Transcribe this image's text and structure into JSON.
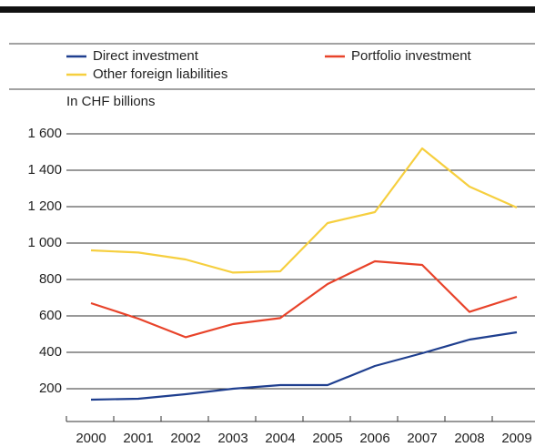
{
  "chart_data": {
    "type": "line",
    "unit_label": "In CHF billions",
    "categories": [
      "2000",
      "2001",
      "2002",
      "2003",
      "2004",
      "2005",
      "2006",
      "2007",
      "2008",
      "2009"
    ],
    "series": [
      {
        "name": "Direct investment",
        "color": "#1f3f8f",
        "values": [
          140,
          145,
          170,
          200,
          220,
          220,
          325,
          395,
          470,
          510
        ]
      },
      {
        "name": "Portfolio investment",
        "color": "#e8432a",
        "values": [
          670,
          585,
          483,
          555,
          588,
          775,
          900,
          880,
          622,
          705
        ]
      },
      {
        "name": "Other foreign liabilities",
        "color": "#f6cf3f",
        "values": [
          960,
          948,
          910,
          838,
          845,
          1110,
          1170,
          1520,
          1310,
          1195
        ]
      }
    ],
    "ylim": [
      0,
      1700
    ],
    "yticks": [
      200,
      400,
      600,
      800,
      {
        "value": 1000,
        "label": "1 000"
      },
      {
        "value": 1200,
        "label": "1 200"
      },
      {
        "value": 1400,
        "label": "1 400"
      },
      {
        "value": 1600,
        "label": "1 600"
      }
    ],
    "grid": true
  }
}
